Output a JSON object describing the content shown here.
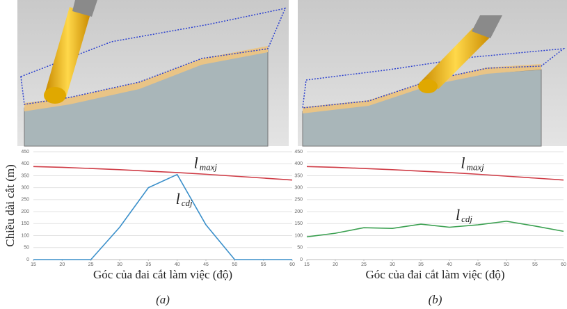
{
  "chart_data": [
    {
      "type": "line",
      "caption": "(a)",
      "ylabel": "Chiều dài cắt (m)",
      "xlabel": "Góc của đai cắt làm việc (độ)",
      "x": [
        15,
        20,
        25,
        30,
        35,
        40,
        45,
        50,
        55,
        60
      ],
      "xlim": [
        15,
        60
      ],
      "xticks": [
        15,
        20,
        25,
        30,
        35,
        40,
        45,
        50,
        55,
        60
      ],
      "ylim": [
        0,
        450
      ],
      "yticks": [
        0,
        50,
        100,
        150,
        200,
        250,
        300,
        350,
        400,
        450
      ],
      "grid": true,
      "series": [
        {
          "label": {
            "symbol": "l",
            "sub": "maxj"
          },
          "color": "#cf3b45",
          "values": [
            388,
            385,
            380,
            375,
            369,
            363,
            356,
            348,
            340,
            332
          ]
        },
        {
          "label": {
            "symbol": "l",
            "sub": "cdj"
          },
          "color": "#3a8fca",
          "values": [
            0,
            0,
            0,
            135,
            300,
            355,
            145,
            0,
            0,
            0
          ]
        }
      ]
    },
    {
      "type": "line",
      "caption": "(b)",
      "xlabel": "Góc của đai cắt làm việc (độ)",
      "x": [
        15,
        20,
        25,
        30,
        35,
        40,
        45,
        50,
        55,
        60
      ],
      "xlim": [
        15,
        60
      ],
      "xticks": [
        15,
        20,
        25,
        30,
        35,
        40,
        45,
        50,
        55,
        60
      ],
      "ylim": [
        0,
        450
      ],
      "yticks": [
        0,
        50,
        100,
        150,
        200,
        250,
        300,
        350,
        400,
        450
      ],
      "grid": true,
      "series": [
        {
          "label": {
            "symbol": "l",
            "sub": "maxj"
          },
          "color": "#cf3b45",
          "values": [
            388,
            385,
            380,
            375,
            369,
            363,
            356,
            348,
            340,
            332
          ]
        },
        {
          "label": {
            "symbol": "l",
            "sub": "cdj"
          },
          "color": "#3aa050",
          "values": [
            95,
            110,
            133,
            130,
            148,
            135,
            145,
            160,
            140,
            118
          ]
        }
      ]
    }
  ]
}
